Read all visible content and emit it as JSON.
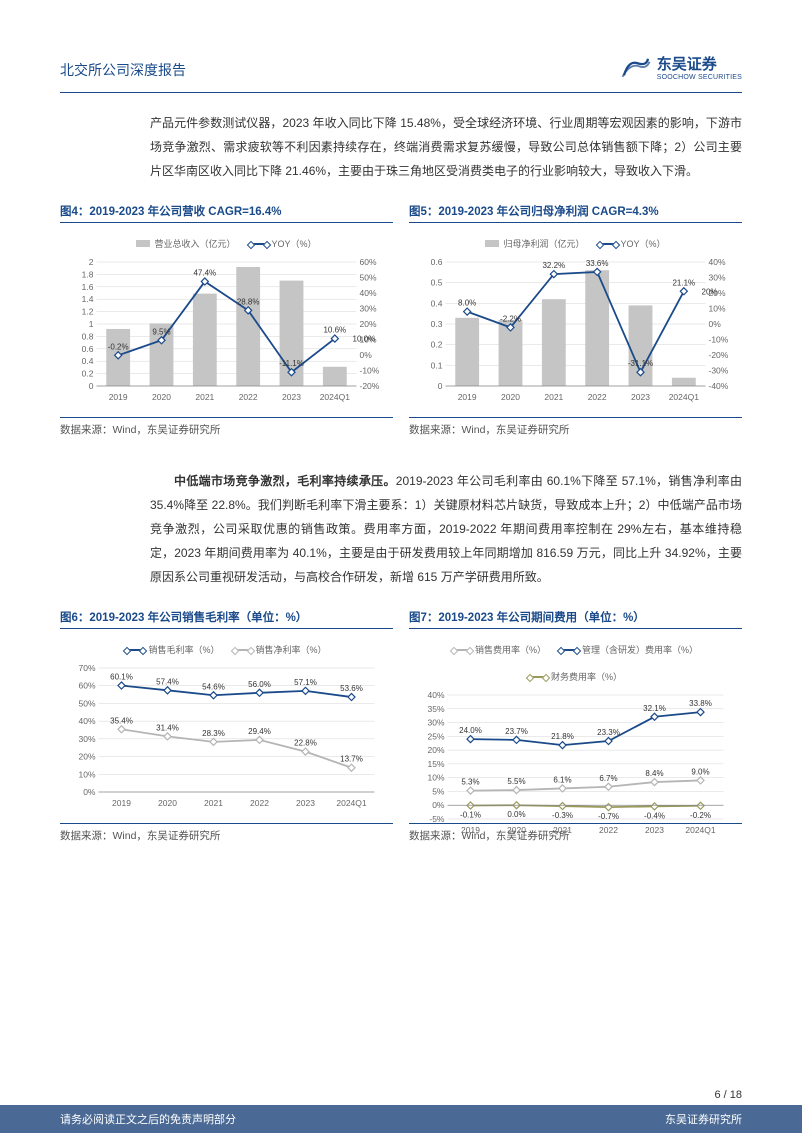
{
  "header": {
    "title": "北交所公司深度报告",
    "logo_cn": "东吴证券",
    "logo_en": "SOOCHOW SECURITIES"
  },
  "paragraph1": "产品元件参数测试仪器，2023 年收入同比下降 15.48%，受全球经济环境、行业周期等宏观因素的影响，下游市场竞争激烈、需求疲软等不利因素持续存在，终端消费需求复苏缓慢，导致公司总体销售额下降；2）公司主要片区华南区收入同比下降 21.46%，主要由于珠三角地区受消费类电子的行业影响较大，导致收入下滑。",
  "paragraph2_bold": "中低端市场竞争激烈，毛利率持续承压。",
  "paragraph2": "2019-2023 年公司毛利率由 60.1%下降至 57.1%，销售净利率由 35.4%降至 22.8%。我们判断毛利率下滑主要系：1）关键原材料芯片缺货，导致成本上升；2）中低端产品市场竞争激烈，公司采取优惠的销售政策。费用率方面，2019-2022 年期间费用率控制在 29%左右，基本维持稳定，2023 年期间费用率为 40.1%，主要是由于研发费用较上年同期增加 816.59 万元，同比上升 34.92%，主要原因系公司重视研发活动，与高校合作研发，新增 615 万产学研费用所致。",
  "chart4": {
    "title": "图4：2019-2023 年公司营收 CAGR=16.4%",
    "type": "bar+line",
    "legend_bar": "营业总收入（亿元）",
    "legend_line": "YOY（%）",
    "categories": [
      "2019",
      "2020",
      "2021",
      "2022",
      "2023",
      "2024Q1"
    ],
    "bar_values": [
      0.92,
      1.01,
      1.49,
      1.92,
      1.7,
      0.31
    ],
    "line_values": [
      -0.2,
      9.5,
      47.4,
      28.8,
      -11.1,
      10.6
    ],
    "line_labels": [
      "-0.2%",
      "9.5%",
      "47.4%",
      "28.8%",
      "-11.1%",
      "10.6%"
    ],
    "overflow_label": "10.0%",
    "y1_ticks": [
      0,
      0.2,
      0.4,
      0.6,
      0.8,
      1,
      1.2,
      1.4,
      1.6,
      1.8,
      2
    ],
    "y2_ticks": [
      -20,
      -10,
      0,
      10,
      20,
      30,
      40,
      50,
      60
    ],
    "bar_color": "#c5c5c5",
    "line_color": "#1a4a8a",
    "source": "数据来源：Wind，东吴证券研究所"
  },
  "chart5": {
    "title": "图5：2019-2023 年公司归母净利润 CAGR=4.3%",
    "type": "bar+line",
    "legend_bar": "归母净利润（亿元）",
    "legend_line": "YOY（%）",
    "categories": [
      "2019",
      "2020",
      "2021",
      "2022",
      "2023",
      "2024Q1"
    ],
    "bar_values": [
      0.33,
      0.32,
      0.42,
      0.56,
      0.39,
      0.04
    ],
    "line_values": [
      8.0,
      -2.2,
      32.2,
      33.6,
      -31.1,
      21.1
    ],
    "line_labels": [
      "8.0%",
      "-2.2%",
      "32.2%",
      "33.6%",
      "-31.1%",
      "21.1%"
    ],
    "overflow_label": "20%",
    "y1_ticks": [
      0,
      0.1,
      0.2,
      0.3,
      0.4,
      0.5,
      0.6
    ],
    "y2_ticks": [
      -40,
      -30,
      -20,
      -10,
      0,
      10,
      20,
      30,
      40
    ],
    "bar_color": "#c5c5c5",
    "line_color": "#1a4a8a",
    "source": "数据来源：Wind，东吴证券研究所"
  },
  "chart6": {
    "title": "图6：2019-2023 年公司销售毛利率（单位：%）",
    "type": "line",
    "legend1": "销售毛利率（%）",
    "legend2": "销售净利率（%）",
    "categories": [
      "2019",
      "2020",
      "2021",
      "2022",
      "2023",
      "2024Q1"
    ],
    "series1": [
      60.1,
      57.4,
      54.6,
      56.0,
      57.1,
      53.6
    ],
    "series1_labels": [
      "60.1%",
      "57.4%",
      "54.6%",
      "56.0%",
      "57.1%",
      "53.6%"
    ],
    "series2": [
      35.4,
      31.4,
      28.3,
      29.4,
      22.8,
      13.7
    ],
    "series2_labels": [
      "35.4%",
      "31.4%",
      "28.3%",
      "29.4%",
      "22.8%",
      "13.7%"
    ],
    "y_ticks": [
      0,
      10,
      20,
      30,
      40,
      50,
      60,
      70
    ],
    "y_tick_labels": [
      "0%",
      "10%",
      "20%",
      "30%",
      "40%",
      "50%",
      "60%",
      "70%"
    ],
    "line1_color": "#1a4a8a",
    "line2_color": "#b5b5b5",
    "source": "数据来源：Wind，东吴证券研究所"
  },
  "chart7": {
    "title": "图7：2019-2023 年公司期间费用（单位：%）",
    "type": "line",
    "legend1": "销售费用率（%）",
    "legend2": "管理（含研发）费用率（%）",
    "legend3": "财务费用率（%）",
    "categories": [
      "2019",
      "2020",
      "2021",
      "2022",
      "2023",
      "2024Q1"
    ],
    "series1": [
      5.3,
      5.5,
      6.1,
      6.7,
      8.4,
      9.0
    ],
    "series1_labels": [
      "5.3%",
      "5.5%",
      "6.1%",
      "6.7%",
      "8.4%",
      "9.0%"
    ],
    "series2": [
      24.0,
      23.7,
      21.8,
      23.3,
      32.1,
      33.8
    ],
    "series2_labels": [
      "24.0%",
      "23.7%",
      "21.8%",
      "23.3%",
      "32.1%",
      "33.8%"
    ],
    "series3": [
      -0.1,
      0.0,
      -0.3,
      -0.7,
      -0.4,
      -0.2
    ],
    "series3_labels": [
      "-0.1%",
      "0.0%",
      "-0.3%",
      "-0.7%",
      "-0.4%",
      "-0.2%"
    ],
    "y_ticks": [
      -5,
      0,
      5,
      10,
      15,
      20,
      25,
      30,
      35,
      40
    ],
    "y_tick_labels": [
      "-5%",
      "0%",
      "5%",
      "10%",
      "15%",
      "20%",
      "25%",
      "30%",
      "35%",
      "40%"
    ],
    "line1_color": "#b5b5b5",
    "line2_color": "#1a4a8a",
    "line3_color": "#9a9a5a",
    "source": "数据来源：Wind，东吴证券研究所"
  },
  "footer": {
    "page_num": "6 / 18",
    "disclaimer": "请务必阅读正文之后的免责声明部分",
    "institute": "东吴证券研究所"
  }
}
